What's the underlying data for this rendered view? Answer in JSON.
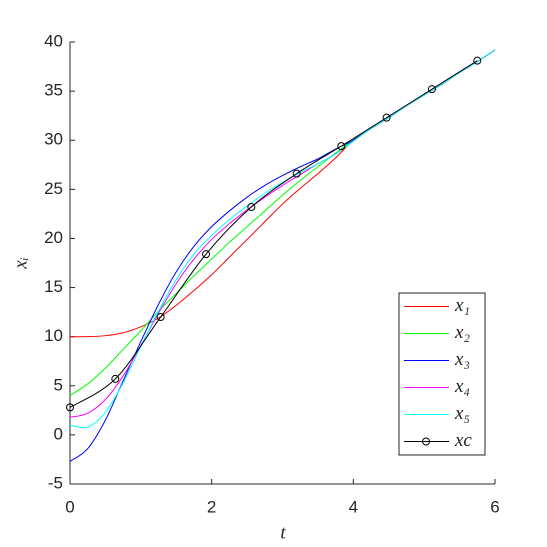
{
  "chart_data": {
    "type": "line",
    "xlabel": "t",
    "ylabel": "xᵢ",
    "x": [
      0,
      0.25,
      0.5,
      0.75,
      1,
      1.25,
      1.5,
      1.75,
      2,
      2.25,
      2.5,
      2.75,
      3,
      3.25,
      3.5,
      3.75,
      4,
      4.25,
      4.5,
      4.75,
      5,
      5.25,
      5.5,
      5.75,
      6
    ],
    "series": [
      {
        "name": "x₁",
        "color": "#ff0000",
        "values": [
          10,
          10,
          10.1,
          10.4,
          11.0,
          11.9,
          13.2,
          14.7,
          16.3,
          18.1,
          19.9,
          21.7,
          23.5,
          25.1,
          26.6,
          28.2,
          30.0,
          31.2,
          32.3,
          33.5,
          34.6,
          35.7,
          36.9,
          38.0,
          39.2
        ]
      },
      {
        "name": "x₂",
        "color": "#00ff00",
        "values": [
          4,
          5.2,
          6.8,
          8.7,
          10.6,
          12.6,
          14.4,
          16.2,
          17.9,
          19.6,
          21.2,
          22.8,
          24.4,
          25.9,
          27.3,
          28.7,
          30.0,
          31.2,
          32.3,
          33.5,
          34.6,
          35.7,
          36.9,
          38.0,
          39.2
        ]
      },
      {
        "name": "x₃",
        "color": "#0000ff",
        "values": [
          -2.7,
          -1.4,
          1.5,
          5.5,
          9.5,
          13.3,
          16.6,
          19.2,
          21.2,
          22.8,
          24.2,
          25.4,
          26.4,
          27.3,
          28.1,
          29.1,
          30.0,
          31.2,
          32.3,
          33.5,
          34.6,
          35.7,
          36.9,
          38.0,
          39.2
        ]
      },
      {
        "name": "x₄",
        "color": "#ff00ff",
        "values": [
          1.8,
          2.2,
          3.6,
          6.0,
          9.1,
          12.4,
          15.4,
          17.9,
          19.9,
          21.5,
          22.9,
          24.2,
          25.4,
          26.5,
          27.6,
          28.6,
          29.9,
          31.2,
          32.3,
          33.5,
          34.6,
          35.7,
          36.9,
          38.0,
          39.2
        ]
      },
      {
        "name": "x₅",
        "color": "#00ffff",
        "values": [
          1.0,
          0.8,
          2.3,
          5.3,
          9.0,
          12.6,
          15.8,
          18.4,
          20.3,
          21.9,
          23.3,
          24.6,
          25.7,
          26.7,
          27.6,
          28.6,
          29.9,
          31.2,
          32.3,
          33.5,
          34.6,
          35.7,
          36.9,
          38.0,
          39.2
        ]
      },
      {
        "name": "xc",
        "color": "#000000",
        "marker": "o",
        "x": [
          0,
          0.64,
          1.28,
          1.92,
          2.56,
          3.2,
          3.83,
          4.47,
          5.11,
          5.75
        ],
        "values": [
          2.8,
          5.7,
          12.0,
          18.4,
          23.2,
          26.6,
          29.4,
          32.3,
          35.2,
          38.1
        ]
      }
    ],
    "xlim": [
      0,
      6
    ],
    "xticks": [
      0,
      2,
      4,
      6
    ],
    "ylim": [
      -5,
      40
    ],
    "yticks": [
      -5,
      0,
      5,
      10,
      15,
      20,
      25,
      30,
      35,
      40
    ],
    "legend": "lower right"
  }
}
